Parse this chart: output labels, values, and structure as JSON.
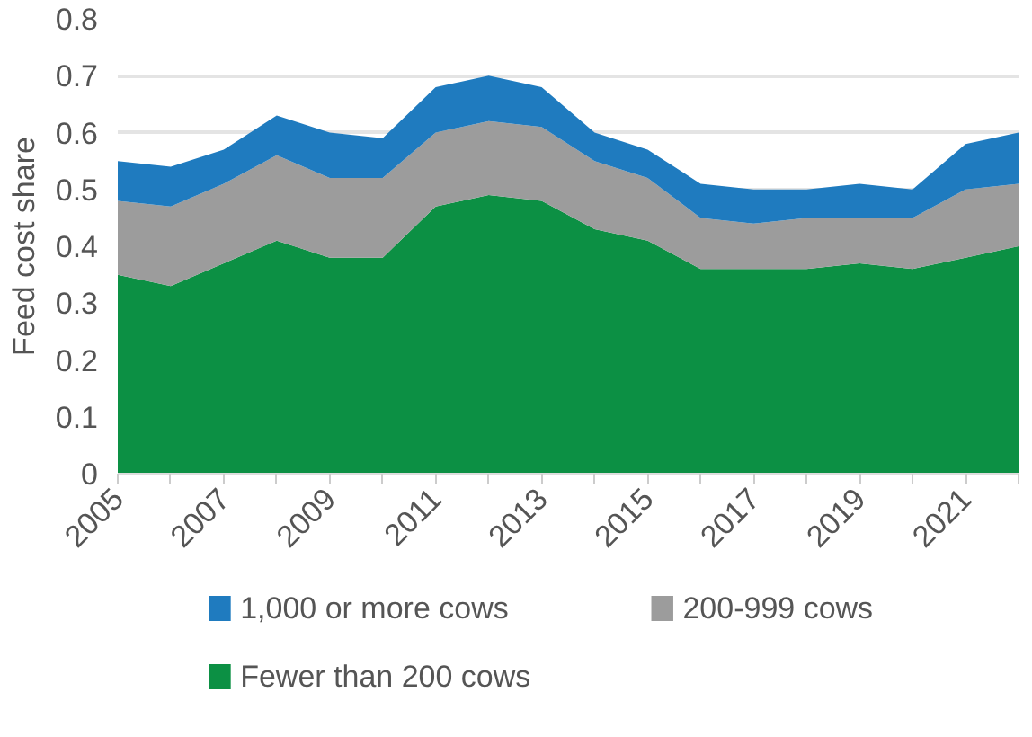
{
  "chart_data": {
    "type": "area",
    "stacked": true,
    "ylabel": "Feed cost share",
    "x": [
      2005,
      2006,
      2007,
      2008,
      2009,
      2010,
      2011,
      2012,
      2013,
      2014,
      2015,
      2016,
      2017,
      2018,
      2019,
      2020,
      2021,
      2022
    ],
    "series": [
      {
        "name": "Fewer than 200 cows",
        "color": "#0c9044",
        "values": [
          0.35,
          0.33,
          0.37,
          0.41,
          0.38,
          0.38,
          0.47,
          0.49,
          0.48,
          0.43,
          0.41,
          0.36,
          0.36,
          0.36,
          0.37,
          0.36,
          0.38,
          0.4
        ]
      },
      {
        "name": "200-999 cows",
        "color": "#9c9c9c",
        "values": [
          0.13,
          0.14,
          0.14,
          0.15,
          0.14,
          0.14,
          0.13,
          0.13,
          0.13,
          0.12,
          0.11,
          0.09,
          0.08,
          0.09,
          0.08,
          0.09,
          0.12,
          0.11
        ]
      },
      {
        "name": "1,000 or more cows",
        "color": "#1f7bbf",
        "values": [
          0.07,
          0.07,
          0.06,
          0.07,
          0.08,
          0.07,
          0.08,
          0.08,
          0.07,
          0.05,
          0.05,
          0.06,
          0.06,
          0.05,
          0.06,
          0.05,
          0.08,
          0.09
        ]
      }
    ],
    "xlim": [
      2005,
      2022
    ],
    "xticks": [
      2005,
      {
        "value": 2006,
        "label": null
      },
      2007,
      {
        "value": 2008,
        "label": null
      },
      2009,
      {
        "value": 2010,
        "label": null
      },
      2011,
      {
        "value": 2012,
        "label": null
      },
      2013,
      {
        "value": 2014,
        "label": null
      },
      2015,
      {
        "value": 2016,
        "label": null
      },
      2017,
      {
        "value": 2018,
        "label": null
      },
      2019,
      {
        "value": 2020,
        "label": null
      },
      2021,
      {
        "value": 2022,
        "label": null
      }
    ],
    "ylim": [
      0,
      0.8
    ],
    "yticks": [
      0,
      0.1,
      0.2,
      0.3,
      0.4,
      0.5,
      0.6,
      0.7,
      0.8
    ],
    "grid": "y",
    "legend": "bottom"
  }
}
